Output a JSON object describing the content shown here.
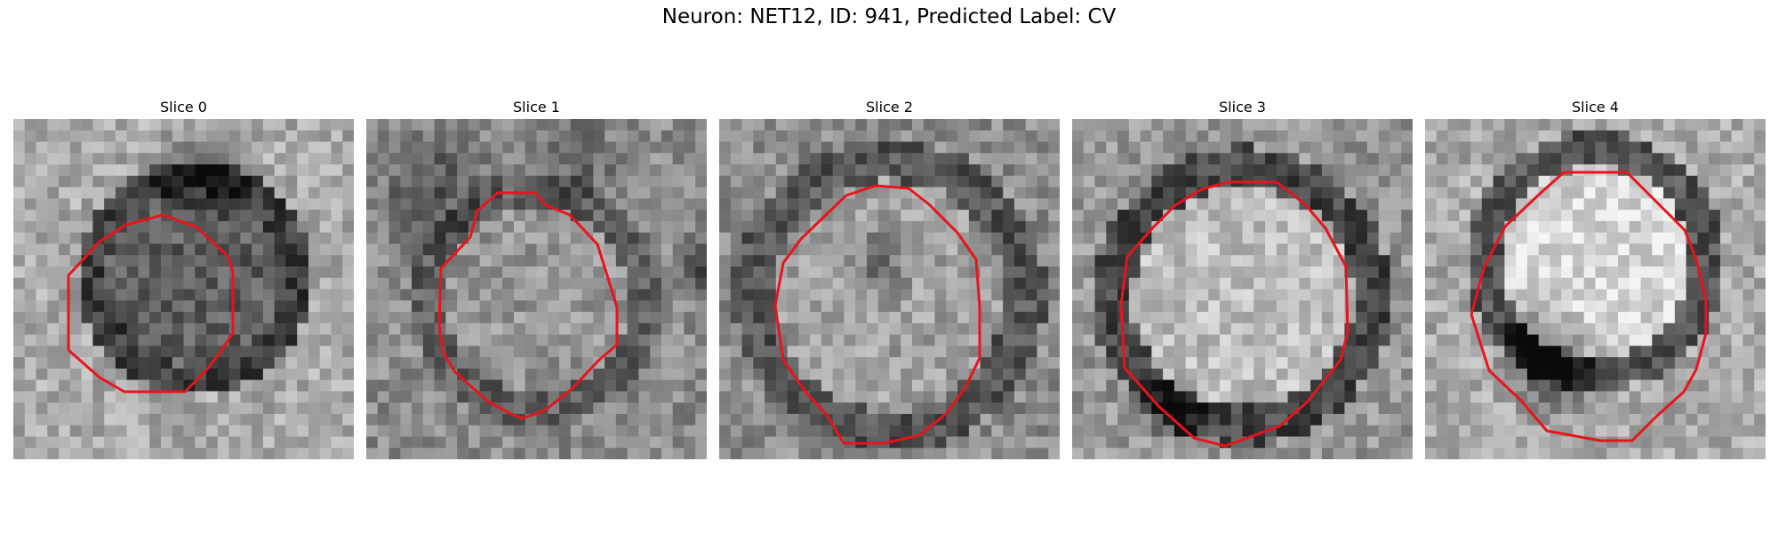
{
  "figure": {
    "title": "Neuron: NET12, ID: 941, Predicted Label: CV",
    "panels": [
      {
        "title": "Slice 0"
      },
      {
        "title": "Slice 1"
      },
      {
        "title": "Slice 2"
      },
      {
        "title": "Slice 3"
      },
      {
        "title": "Slice 4"
      }
    ]
  },
  "colors": {
    "contour": "#e8141c",
    "background": "#ffffff"
  }
}
